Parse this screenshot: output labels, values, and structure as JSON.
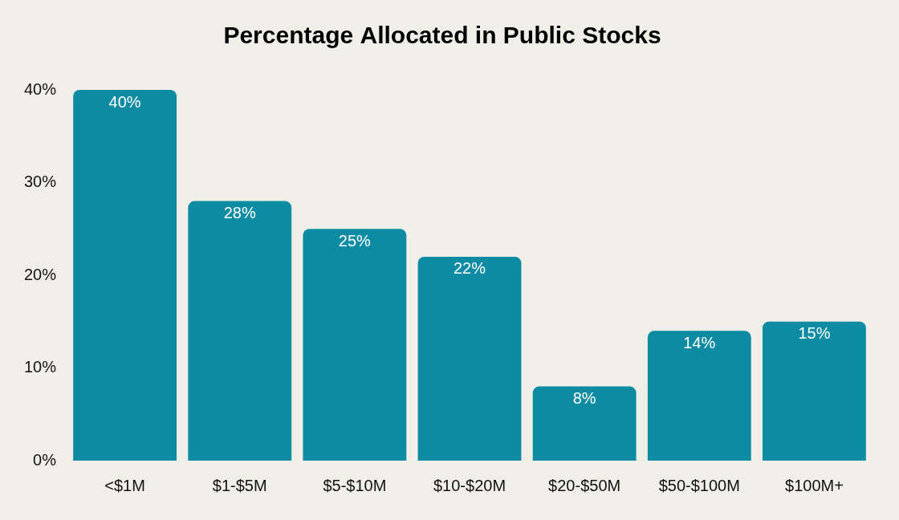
{
  "chart_data": {
    "type": "bar",
    "title": "Percentage Allocated in Public Stocks",
    "categories": [
      "<$1M",
      "$1-$5M",
      "$5-$10M",
      "$10-$20M",
      "$20-$50M",
      "$50-$100M",
      "$100M+"
    ],
    "values": [
      40,
      28,
      25,
      22,
      8,
      14,
      15
    ],
    "value_labels": [
      "40%",
      "28%",
      "25%",
      "22%",
      "8%",
      "14%",
      "15%"
    ],
    "color": "#0d8ba3",
    "ylim": [
      0,
      40
    ],
    "yticks": [
      {
        "value": 0,
        "label": "0%"
      },
      {
        "value": 10,
        "label": "10%"
      },
      {
        "value": 20,
        "label": "20%"
      },
      {
        "value": 30,
        "label": "30%"
      },
      {
        "value": 40,
        "label": "40%"
      }
    ],
    "grid": false,
    "data_labels": true
  }
}
